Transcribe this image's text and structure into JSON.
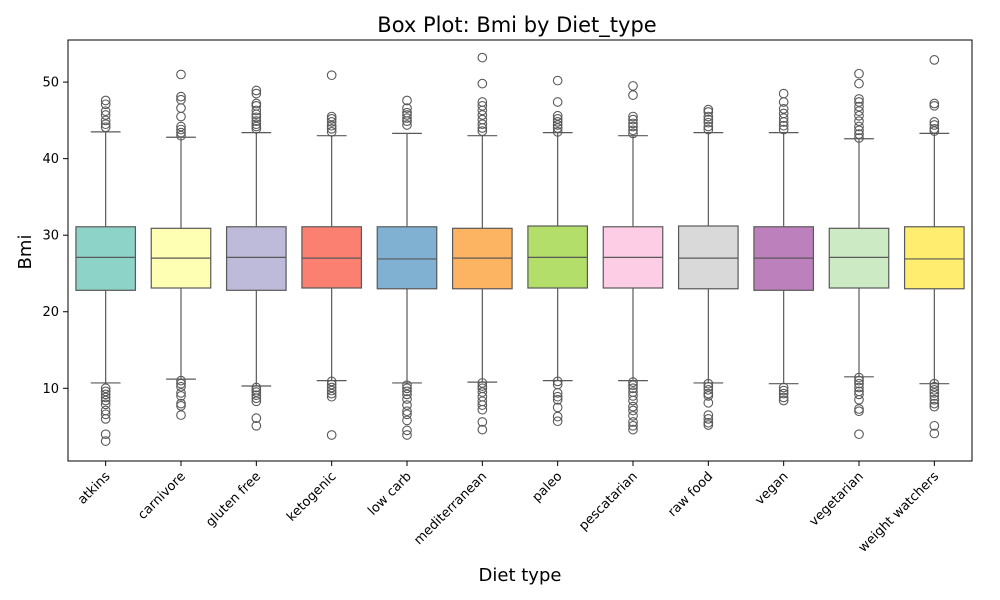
{
  "chart_data": {
    "type": "box",
    "title": "Box Plot: Bmi by Diet_type",
    "xlabel": "Diet type",
    "ylabel": "Bmi",
    "ylim": [
      0.5,
      55.5
    ],
    "yticks": [
      10,
      20,
      30,
      40,
      50
    ],
    "grid": false,
    "legend": "none",
    "series": [
      {
        "category": "atkins",
        "color": "#8dd3c7",
        "q1": 22.8,
        "median": 27.1,
        "q3": 31.1,
        "whisker_low": 10.7,
        "whisker_high": 43.5,
        "outliers": [
          47.6,
          47.1,
          46.2,
          45.7,
          45.0,
          44.5,
          44.1,
          10.0,
          9.6,
          9.2,
          8.8,
          8.4,
          7.9,
          7.1,
          6.6,
          6.0,
          4.0,
          3.1
        ]
      },
      {
        "category": "carnivore",
        "color": "#ffffb3",
        "q1": 23.1,
        "median": 27.0,
        "q3": 30.9,
        "whisker_low": 11.2,
        "whisker_high": 42.8,
        "outliers": [
          51.0,
          48.1,
          47.7,
          46.6,
          45.5,
          44.2,
          43.8,
          43.4,
          43.0,
          11.0,
          10.6,
          10.2,
          9.4,
          9.0,
          8.0,
          7.7,
          6.5
        ]
      },
      {
        "category": "gluten free",
        "color": "#bebada",
        "q1": 22.8,
        "median": 27.1,
        "q3": 31.1,
        "whisker_low": 10.3,
        "whisker_high": 43.4,
        "outliers": [
          48.9,
          48.5,
          47.2,
          46.9,
          46.3,
          45.8,
          45.4,
          44.9,
          44.5,
          44.2,
          43.9,
          10.1,
          9.8,
          9.5,
          9.1,
          8.7,
          8.3,
          6.1,
          5.1
        ]
      },
      {
        "category": "ketogenic",
        "color": "#fb8072",
        "q1": 23.1,
        "median": 27.0,
        "q3": 31.1,
        "whisker_low": 11.0,
        "whisker_high": 43.0,
        "outliers": [
          50.9,
          45.5,
          45.2,
          44.8,
          44.3,
          43.9,
          43.5,
          10.9,
          10.5,
          10.1,
          9.7,
          9.3,
          8.9,
          3.9
        ]
      },
      {
        "category": "low carb",
        "color": "#80b1d3",
        "q1": 23.0,
        "median": 26.9,
        "q3": 31.1,
        "whisker_low": 10.7,
        "whisker_high": 43.3,
        "outliers": [
          47.6,
          46.6,
          46.0,
          45.7,
          45.3,
          44.9,
          44.4,
          10.4,
          10.0,
          9.6,
          9.2,
          8.6,
          7.8,
          7.0,
          6.6,
          5.8,
          4.5,
          3.9
        ]
      },
      {
        "category": "mediterranean",
        "color": "#fdb462",
        "q1": 23.0,
        "median": 27.0,
        "q3": 30.9,
        "whisker_low": 10.8,
        "whisker_high": 43.0,
        "outliers": [
          53.2,
          49.8,
          47.4,
          46.9,
          46.3,
          45.7,
          45.1,
          44.5,
          44.0,
          43.6,
          10.7,
          10.3,
          10.0,
          9.5,
          8.9,
          8.3,
          7.8,
          7.2,
          5.6,
          4.6
        ]
      },
      {
        "category": "paleo",
        "color": "#b3de69",
        "q1": 23.1,
        "median": 27.1,
        "q3": 31.2,
        "whisker_low": 11.0,
        "whisker_high": 43.4,
        "outliers": [
          50.2,
          47.4,
          45.6,
          45.2,
          44.8,
          44.4,
          44.0,
          43.5,
          10.9,
          10.5,
          9.4,
          8.9,
          8.5,
          7.5,
          6.3,
          5.7
        ]
      },
      {
        "category": "pescatarian",
        "color": "#fccde5",
        "q1": 23.1,
        "median": 27.1,
        "q3": 31.1,
        "whisker_low": 11.0,
        "whisker_high": 43.0,
        "outliers": [
          49.5,
          48.3,
          45.5,
          45.1,
          44.6,
          44.2,
          43.7,
          43.3,
          10.8,
          10.4,
          10.0,
          9.5,
          9.0,
          8.4,
          7.6,
          7.1,
          6.4,
          5.6,
          5.1,
          4.6
        ]
      },
      {
        "category": "raw food",
        "color": "#d9d9d9",
        "q1": 23.0,
        "median": 27.0,
        "q3": 31.2,
        "whisker_low": 10.7,
        "whisker_high": 43.4,
        "outliers": [
          46.4,
          46.1,
          45.5,
          45.1,
          44.7,
          44.2,
          43.8,
          10.6,
          10.2,
          9.8,
          9.3,
          9.0,
          8.1,
          6.5,
          6.0,
          5.5,
          5.2
        ]
      },
      {
        "category": "vegan",
        "color": "#bc80bd",
        "q1": 22.8,
        "median": 27.0,
        "q3": 31.1,
        "whisker_low": 10.6,
        "whisker_high": 43.4,
        "outliers": [
          48.5,
          47.4,
          46.5,
          45.9,
          45.3,
          44.8,
          44.3,
          43.8,
          10.1,
          9.7,
          9.3,
          8.8,
          8.4
        ]
      },
      {
        "category": "vegetarian",
        "color": "#ccebc5",
        "q1": 23.1,
        "median": 27.1,
        "q3": 30.9,
        "whisker_low": 11.5,
        "whisker_high": 42.6,
        "outliers": [
          51.1,
          49.8,
          47.8,
          47.4,
          46.8,
          46.2,
          45.6,
          44.9,
          44.2,
          43.7,
          43.2,
          42.7,
          11.4,
          11.0,
          10.6,
          10.1,
          9.6,
          9.2,
          8.5,
          7.3,
          7.0,
          4.0
        ]
      },
      {
        "category": "weight watchers",
        "color": "#ffed6f",
        "q1": 23.0,
        "median": 26.9,
        "q3": 31.1,
        "whisker_low": 10.6,
        "whisker_high": 43.3,
        "outliers": [
          52.9,
          47.2,
          46.9,
          44.8,
          44.4,
          43.9,
          43.6,
          10.6,
          10.2,
          9.8,
          9.4,
          9.0,
          8.5,
          8.0,
          7.6,
          5.1,
          4.1
        ]
      }
    ]
  }
}
